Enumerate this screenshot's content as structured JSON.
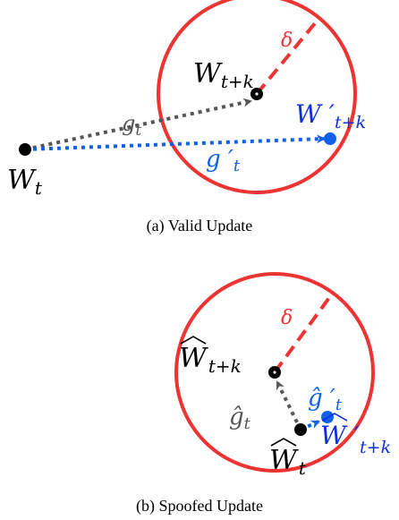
{
  "figure_a": {
    "caption": "(a) Valid Update",
    "labels": {
      "w_t": "W",
      "w_t_sub": "t",
      "w_tk": "W",
      "w_tk_sub": "t+k",
      "g_t": "g",
      "g_t_sub": "t",
      "delta": "δ",
      "w_prime": "W ′",
      "w_prime_sub": "t+k",
      "g_prime": "g ′",
      "g_prime_sub": "t"
    }
  },
  "figure_b": {
    "caption": "(b) Spoofed Update",
    "labels": {
      "w_tk_hat": "W",
      "w_tk_hat_sub": "t+k",
      "g_t_hat": "ĝ",
      "g_t_hat_sub": "t",
      "w_t_hat": "W",
      "w_t_hat_sub": "t",
      "delta": "δ",
      "g_prime_hat": "ĝ ′",
      "g_prime_hat_sub": "t",
      "w_prime_hat": "W ′",
      "w_prime_hat_sub": "t+k"
    }
  },
  "colors": {
    "circle": "#ee3333",
    "gray_arrow": "#555555",
    "blue": "#1060e8",
    "blue_text": "#1030e0",
    "red_text": "#ee3333",
    "dot": "#000000"
  }
}
